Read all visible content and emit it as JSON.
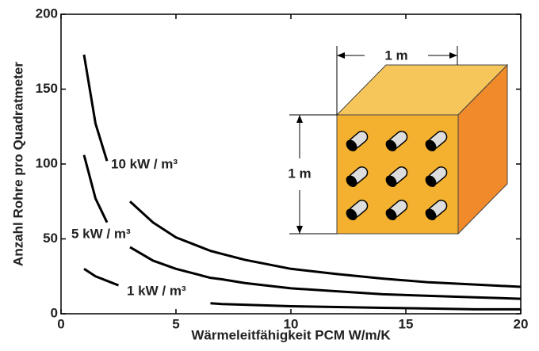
{
  "chart_data": {
    "type": "line",
    "xlabel": "Wärmeleitfähigkeit PCM  W/m/K",
    "ylabel": "Anzahl Rohre pro Quadratmeter",
    "x": [
      1,
      1.5,
      2,
      2.5,
      3,
      4,
      5,
      6,
      6.5,
      7,
      8,
      10,
      12,
      14,
      16,
      18,
      20
    ],
    "series": [
      {
        "name": "10 kW / m³",
        "color": "#000000",
        "values": [
          173,
          127,
          102,
          null,
          75,
          61,
          51,
          45,
          42,
          40,
          36,
          30,
          26.5,
          23.5,
          21,
          19.5,
          18
        ]
      },
      {
        "name": "5 kW / m³",
        "color": "#000000",
        "values": [
          106,
          77,
          61,
          null,
          44.5,
          35.5,
          30,
          26,
          24,
          23,
          20.5,
          17,
          15,
          13,
          12,
          11,
          10
        ]
      },
      {
        "name": "1 kW / m³",
        "color": "#000000",
        "values": [
          30,
          25,
          22,
          19,
          null,
          null,
          null,
          null,
          7,
          6.5,
          6,
          5,
          4.5,
          4,
          3.5,
          3,
          3
        ]
      }
    ],
    "xlim": [
      0,
      20
    ],
    "xticks": [
      0,
      5,
      10,
      15,
      20
    ],
    "ylim": [
      0,
      200
    ],
    "yticks": [
      0,
      50,
      100,
      150,
      200
    ],
    "inset": {
      "width_label": "1 m",
      "height_label": "1 m"
    }
  }
}
